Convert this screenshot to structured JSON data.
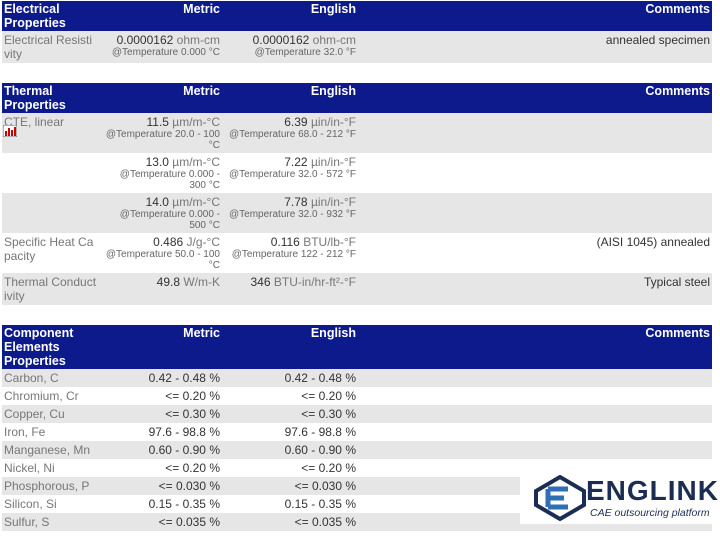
{
  "sections": [
    {
      "header": [
        "Electrical Properties",
        "Metric",
        "English",
        "Comments"
      ],
      "rows": [
        {
          "property": "Electrical Resistivity",
          "metric": {
            "value": "0.0000162",
            "unit": "ohm-cm",
            "condition": "@Temperature 0.000 °C"
          },
          "english": {
            "value": "0.0000162",
            "unit": "ohm-cm",
            "condition": "@Temperature 32.0 °F"
          },
          "comments": "annealed specimen"
        }
      ]
    },
    {
      "header": [
        "Thermal Properties",
        "Metric",
        "English",
        "Comments"
      ],
      "rows": [
        {
          "property": "CTE, linear",
          "metric": {
            "value": "11.5",
            "unit": "µm/m-°C",
            "condition": "@Temperature 20.0 - 100 °C"
          },
          "english": {
            "value": "6.39",
            "unit": "µin/in-°F",
            "condition": "@Temperature 68.0 - 212 °F"
          }
        },
        {
          "metric": {
            "value": "13.0",
            "unit": "µm/m-°C",
            "condition": "@Temperature 0.000 - 300 °C"
          },
          "english": {
            "value": "7.22",
            "unit": "µin/in-°F",
            "condition": "@Temperature 32.0 - 572 °F"
          }
        },
        {
          "metric": {
            "value": "14.0",
            "unit": "µm/m-°C",
            "condition": "@Temperature 0.000 - 500 °C"
          },
          "english": {
            "value": "7.78",
            "unit": "µin/in-°F",
            "condition": "@Temperature 32.0 - 932 °F"
          }
        },
        {
          "property": "Specific Heat Capacity",
          "metric": {
            "value": "0.486",
            "unit": "J/g-°C",
            "condition": "@Temperature 50.0 - 100 °C"
          },
          "english": {
            "value": "0.116",
            "unit": "BTU/lb-°F",
            "condition": "@Temperature 122 - 212 °F"
          },
          "comments": "(AISI 1045) annealed"
        },
        {
          "property": "Thermal Conductivity",
          "metric": {
            "value": "49.8",
            "unit": "W/m-K"
          },
          "english": {
            "value": "346",
            "unit": "BTU-in/hr-ft²-°F"
          },
          "comments": "Typical steel"
        }
      ]
    },
    {
      "header": [
        "Component Elements Properties",
        "Metric",
        "English",
        "Comments"
      ],
      "rows": [
        {
          "property": "Carbon, C",
          "metric": "0.42 - 0.48 %",
          "english": "0.42 - 0.48 %"
        },
        {
          "property": "Chromium, Cr",
          "metric": "<= 0.20 %",
          "english": "<= 0.20 %"
        },
        {
          "property": "Copper, Cu",
          "metric": "<= 0.30 %",
          "english": "<= 0.30 %"
        },
        {
          "property": "Iron, Fe",
          "metric": "97.6 - 98.8 %",
          "english": "97.6 - 98.8 %"
        },
        {
          "property": "Manganese, Mn",
          "metric": "0.60 - 0.90 %",
          "english": "0.60 - 0.90 %"
        },
        {
          "property": "Nickel, Ni",
          "metric": "<= 0.20 %",
          "english": "<= 0.20 %"
        },
        {
          "property": "Phosphorous, P",
          "metric": "<= 0.030 %",
          "english": "<= 0.030 %"
        },
        {
          "property": "Silicon, Si",
          "metric": "0.15 - 0.35 %",
          "english": "0.15 - 0.35 %"
        },
        {
          "property": "Sulfur, S",
          "metric": "<= 0.035 %",
          "english": "<= 0.035 %"
        }
      ]
    }
  ],
  "logo": {
    "name": "ENGLINK",
    "tagline": "CAE outsourcing platform"
  }
}
